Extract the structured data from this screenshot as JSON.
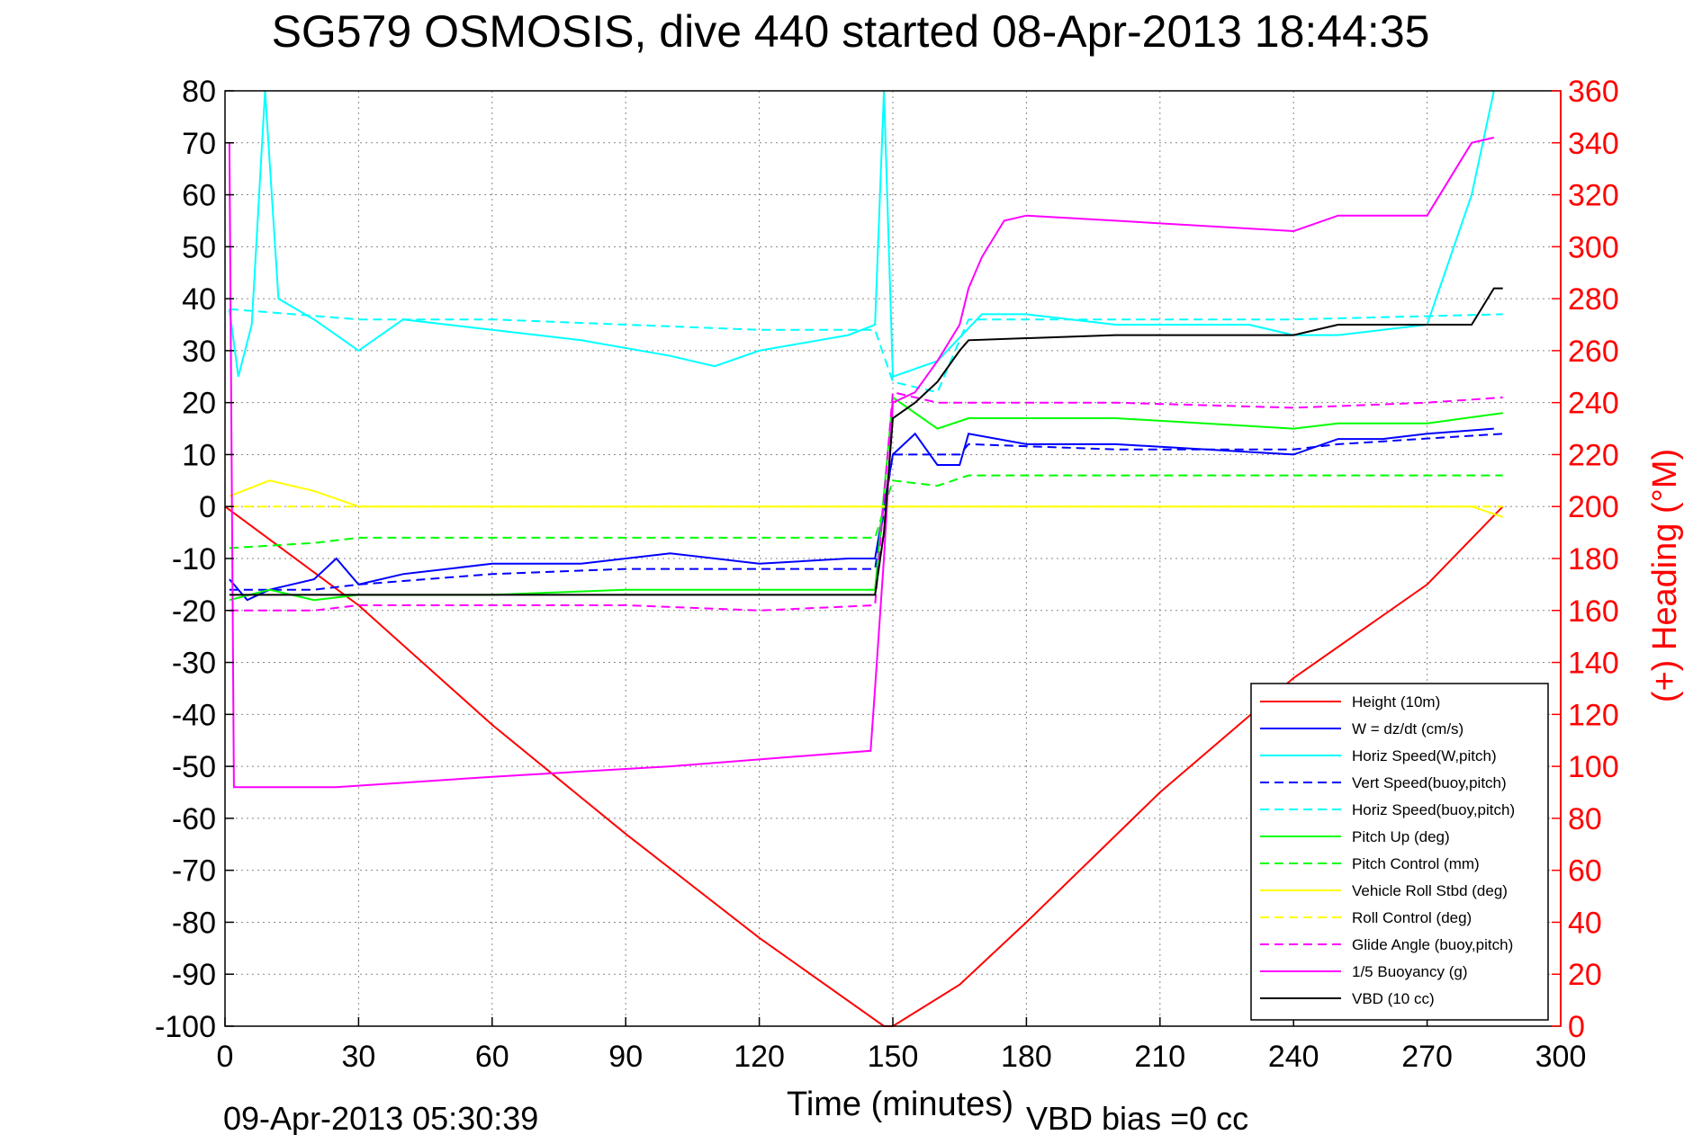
{
  "chart_data": {
    "type": "line",
    "title": "SG579 OSMOSIS, dive 440 started 08-Apr-2013 18:44:35",
    "xlabel": "Time (minutes)",
    "ylabel": "",
    "y2label": "(+) Heading (°M)",
    "xlim": [
      0,
      300
    ],
    "ylim": [
      -100,
      80
    ],
    "y2lim": [
      0,
      360
    ],
    "xticks": [
      "0",
      "30",
      "60",
      "90",
      "120",
      "150",
      "180",
      "210",
      "240",
      "270",
      "300"
    ],
    "yticks": [
      "80",
      "70",
      "60",
      "50",
      "40",
      "30",
      "20",
      "10",
      "0",
      "-10",
      "-20",
      "-30",
      "-40",
      "-50",
      "-60",
      "-70",
      "-80",
      "-90",
      "-100"
    ],
    "y2ticks": [
      "360",
      "340",
      "320",
      "300",
      "280",
      "260",
      "240",
      "220",
      "200",
      "180",
      "160",
      "140",
      "120",
      "100",
      "80",
      "60",
      "40",
      "20",
      "0"
    ],
    "grid": true,
    "legend_position": "bottom-right",
    "footer_left": "09-Apr-2013 05:30:39",
    "footer_right": "VBD bias =0 cc",
    "series": [
      {
        "name": "Height (10m)",
        "color": "#ff0000",
        "style": "solid",
        "x": [
          0,
          30,
          60,
          90,
          120,
          148,
          150,
          165,
          180,
          210,
          240,
          270,
          287
        ],
        "y": [
          0,
          -19,
          -42,
          -63,
          -83,
          -100,
          -100,
          -92,
          -80,
          -55,
          -33,
          -15,
          0
        ]
      },
      {
        "name": "W = dz/dt (cm/s)",
        "color": "#0000ff",
        "style": "solid",
        "x": [
          1,
          5,
          10,
          20,
          25,
          30,
          40,
          60,
          80,
          100,
          120,
          140,
          146,
          150,
          155,
          160,
          165,
          167,
          180,
          200,
          240,
          250,
          260,
          270,
          285
        ],
        "y": [
          -14,
          -18,
          -16,
          -14,
          -10,
          -15,
          -13,
          -11,
          -11,
          -9,
          -11,
          -10,
          -10,
          10,
          14,
          8,
          8,
          14,
          12,
          12,
          10,
          13,
          13,
          14,
          15
        ]
      },
      {
        "name": "Horiz Speed(W,pitch)",
        "color": "#00ffff",
        "style": "solid",
        "x": [
          1,
          3,
          6,
          9,
          12,
          20,
          30,
          40,
          60,
          80,
          100,
          110,
          120,
          140,
          146,
          148,
          150,
          160,
          170,
          180,
          200,
          230,
          240,
          250,
          260,
          270,
          280,
          285
        ],
        "y": [
          38,
          25,
          35,
          80,
          40,
          36,
          30,
          36,
          34,
          32,
          29,
          27,
          30,
          33,
          35,
          80,
          25,
          28,
          37,
          37,
          35,
          35,
          33,
          33,
          34,
          35,
          60,
          80
        ]
      },
      {
        "name": "Vert Speed(buoy,pitch)",
        "color": "#0000ff",
        "style": "dashed",
        "x": [
          1,
          20,
          30,
          60,
          90,
          120,
          146,
          150,
          160,
          165,
          167,
          200,
          240,
          250,
          287
        ],
        "y": [
          -16,
          -16,
          -15,
          -13,
          -12,
          -12,
          -12,
          10,
          10,
          10,
          12,
          11,
          11,
          12,
          14
        ]
      },
      {
        "name": "Horiz Speed(buoy,pitch)",
        "color": "#00ffff",
        "style": "dashed",
        "x": [
          1,
          30,
          60,
          90,
          120,
          146,
          150,
          160,
          167,
          200,
          240,
          287
        ],
        "y": [
          38,
          36,
          36,
          35,
          34,
          34,
          24,
          22,
          36,
          36,
          36,
          37
        ]
      },
      {
        "name": "Pitch Up (deg)",
        "color": "#00ff00",
        "style": "solid",
        "x": [
          1,
          10,
          20,
          30,
          60,
          90,
          120,
          146,
          150,
          160,
          167,
          200,
          240,
          250,
          270,
          287
        ],
        "y": [
          -18,
          -16,
          -18,
          -17,
          -17,
          -16,
          -16,
          -16,
          21,
          15,
          17,
          17,
          15,
          16,
          16,
          18
        ]
      },
      {
        "name": "Pitch Control (mm)",
        "color": "#00ff00",
        "style": "dashed",
        "x": [
          1,
          20,
          30,
          60,
          90,
          120,
          146,
          150,
          160,
          167,
          200,
          240,
          287
        ],
        "y": [
          -8,
          -7,
          -6,
          -6,
          -6,
          -6,
          -6,
          5,
          4,
          6,
          6,
          6,
          6
        ]
      },
      {
        "name": "Vehicle Roll Stbd (deg)",
        "color": "#ffff00",
        "style": "solid",
        "x": [
          1,
          10,
          20,
          30,
          60,
          90,
          120,
          146,
          150,
          170,
          200,
          240,
          270,
          280,
          287
        ],
        "y": [
          2,
          5,
          3,
          0,
          0,
          0,
          0,
          0,
          0,
          0,
          0,
          0,
          0,
          0,
          -2
        ]
      },
      {
        "name": "Roll Control (deg)",
        "color": "#ffff00",
        "style": "dashed",
        "x": [
          1,
          30,
          60,
          90,
          120,
          146,
          150,
          170,
          200,
          240,
          287
        ],
        "y": [
          0,
          0,
          0,
          0,
          0,
          0,
          0,
          0,
          0,
          0,
          0
        ]
      },
      {
        "name": "Glide Angle (buoy,pitch)",
        "color": "#ff00ff",
        "style": "dashed",
        "x": [
          1,
          20,
          30,
          60,
          90,
          120,
          146,
          150,
          160,
          167,
          200,
          240,
          270,
          287
        ],
        "y": [
          -20,
          -20,
          -19,
          -19,
          -19,
          -20,
          -19,
          22,
          20,
          20,
          20,
          19,
          20,
          21
        ]
      },
      {
        "name": "1/5 Buoyancy (g)",
        "color": "#ff00ff",
        "style": "solid",
        "x": [
          1,
          2,
          25,
          60,
          100,
          145,
          146,
          148,
          150,
          155,
          160,
          165,
          167,
          170,
          175,
          180,
          200,
          240,
          250,
          270,
          280,
          285
        ],
        "y": [
          70,
          -54,
          -54,
          -52,
          -50,
          -47,
          -35,
          -10,
          20,
          22,
          28,
          35,
          42,
          48,
          55,
          56,
          55,
          53,
          56,
          56,
          70,
          71
        ]
      },
      {
        "name": "VBD (10 cc)",
        "color": "#000000",
        "style": "solid",
        "x": [
          1,
          30,
          60,
          90,
          120,
          146,
          148,
          150,
          155,
          160,
          165,
          167,
          200,
          240,
          250,
          280,
          285,
          287
        ],
        "y": [
          -17,
          -17,
          -17,
          -17,
          -17,
          -17,
          -5,
          17,
          20,
          24,
          30,
          32,
          33,
          33,
          35,
          35,
          42,
          42
        ]
      }
    ]
  }
}
